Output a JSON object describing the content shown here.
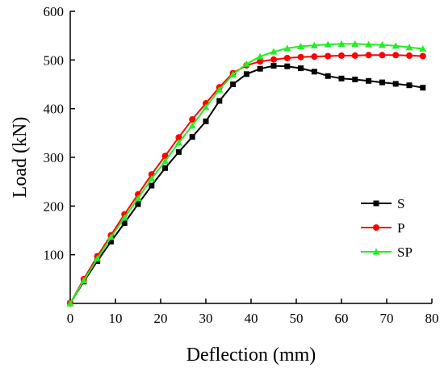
{
  "chart_data": {
    "type": "line",
    "title": "",
    "xlabel": "Deflection (mm)",
    "ylabel": "Load (kN)",
    "xlim": [
      0,
      80
    ],
    "ylim": [
      0,
      600
    ],
    "xticks": [
      0,
      10,
      20,
      30,
      40,
      50,
      60,
      70,
      80
    ],
    "yticks": [
      100,
      200,
      300,
      400,
      500,
      600
    ],
    "grid": false,
    "legend_position": "right",
    "series": [
      {
        "name": "S",
        "color": "#000000",
        "marker": "square",
        "points": [
          [
            0,
            0
          ],
          [
            3,
            45
          ],
          [
            6,
            87
          ],
          [
            9,
            127
          ],
          [
            12,
            165
          ],
          [
            15,
            204
          ],
          [
            18,
            242
          ],
          [
            21,
            278
          ],
          [
            24,
            311
          ],
          [
            27,
            342
          ],
          [
            30,
            374
          ],
          [
            33,
            416
          ],
          [
            36,
            450
          ],
          [
            39,
            471
          ],
          [
            42,
            482
          ],
          [
            45,
            488
          ],
          [
            48,
            487
          ],
          [
            51,
            483
          ],
          [
            54,
            476
          ],
          [
            57,
            467
          ],
          [
            60,
            462
          ],
          [
            63,
            460
          ],
          [
            66,
            457
          ],
          [
            69,
            454
          ],
          [
            72,
            451
          ],
          [
            75,
            448
          ],
          [
            78,
            443
          ]
        ]
      },
      {
        "name": "P",
        "color": "#ff0000",
        "marker": "circle",
        "points": [
          [
            0,
            0
          ],
          [
            3,
            50
          ],
          [
            6,
            97
          ],
          [
            9,
            140
          ],
          [
            12,
            183
          ],
          [
            15,
            224
          ],
          [
            18,
            265
          ],
          [
            21,
            303
          ],
          [
            24,
            341
          ],
          [
            27,
            378
          ],
          [
            30,
            411
          ],
          [
            33,
            444
          ],
          [
            36,
            473
          ],
          [
            39,
            489
          ],
          [
            42,
            497
          ],
          [
            45,
            501
          ],
          [
            48,
            504
          ],
          [
            51,
            506
          ],
          [
            54,
            507
          ],
          [
            57,
            508
          ],
          [
            60,
            509
          ],
          [
            63,
            509
          ],
          [
            66,
            510
          ],
          [
            69,
            510
          ],
          [
            72,
            510
          ],
          [
            75,
            509
          ],
          [
            78,
            508
          ]
        ]
      },
      {
        "name": "SP",
        "color": "#22ee22",
        "marker": "triangle",
        "points": [
          [
            0,
            0
          ],
          [
            3,
            47
          ],
          [
            6,
            92
          ],
          [
            9,
            136
          ],
          [
            12,
            176
          ],
          [
            15,
            216
          ],
          [
            18,
            256
          ],
          [
            21,
            292
          ],
          [
            24,
            330
          ],
          [
            27,
            365
          ],
          [
            30,
            403
          ],
          [
            33,
            439
          ],
          [
            36,
            470
          ],
          [
            39,
            492
          ],
          [
            42,
            507
          ],
          [
            45,
            517
          ],
          [
            48,
            524
          ],
          [
            51,
            528
          ],
          [
            54,
            530
          ],
          [
            57,
            532
          ],
          [
            60,
            533
          ],
          [
            63,
            533
          ],
          [
            66,
            532
          ],
          [
            69,
            531
          ],
          [
            72,
            529
          ],
          [
            75,
            526
          ],
          [
            78,
            523
          ]
        ]
      }
    ]
  }
}
